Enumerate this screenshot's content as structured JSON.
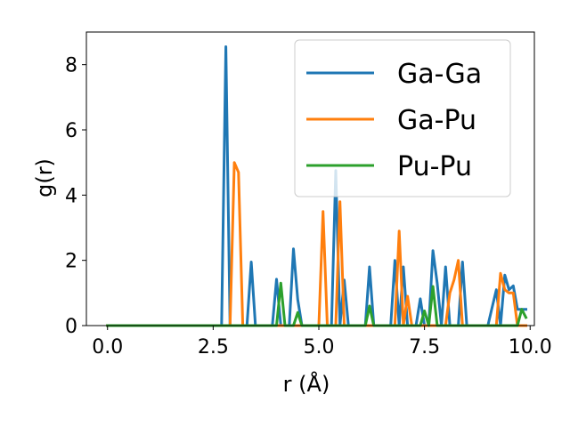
{
  "chart_data": {
    "type": "line",
    "xlabel": "r (Å)",
    "ylabel": "g(r)",
    "xlim": [
      -0.5,
      10.1
    ],
    "ylim": [
      0,
      9
    ],
    "xticks": [
      0.0,
      2.5,
      5.0,
      7.5,
      10.0
    ],
    "xtick_labels": [
      "0.0",
      "2.5",
      "5.0",
      "7.5",
      "10.0"
    ],
    "yticks": [
      0,
      2,
      4,
      6,
      8
    ],
    "ytick_labels": [
      "0",
      "2",
      "4",
      "6",
      "8"
    ],
    "grid": false,
    "legend_position": "top-right",
    "series": [
      {
        "name": "Ga-Ga",
        "color": "#1f77b4",
        "x": [
          0,
          2.7,
          2.8,
          2.9,
          3.3,
          3.4,
          3.5,
          3.9,
          4.0,
          4.1,
          4.3,
          4.4,
          4.5,
          4.6,
          5.3,
          5.4,
          5.5,
          5.6,
          5.7,
          5.8,
          6.1,
          6.2,
          6.3,
          6.7,
          6.8,
          6.9,
          7.0,
          7.1,
          7.3,
          7.4,
          7.5,
          7.6,
          7.7,
          7.8,
          7.9,
          8.0,
          8.1,
          8.3,
          8.4,
          8.5,
          9.0,
          9.1,
          9.2,
          9.3,
          9.4,
          9.5,
          9.6,
          9.7,
          9.8,
          9.9
        ],
        "y": [
          0,
          0,
          8.55,
          0,
          0,
          1.95,
          0,
          0,
          1.42,
          0,
          0,
          2.35,
          0.8,
          0,
          0,
          4.75,
          0,
          1.4,
          0,
          0,
          0,
          1.8,
          0,
          0,
          2.0,
          0,
          1.8,
          0,
          0,
          0.82,
          0,
          0,
          2.3,
          1.3,
          0,
          1.8,
          0,
          0,
          1.95,
          0,
          0,
          0.55,
          1.1,
          0,
          1.55,
          1.1,
          1.22,
          0.5,
          0.5,
          0.5
        ]
      },
      {
        "name": "Ga-Pu",
        "color": "#ff7f0e",
        "x": [
          0,
          2.9,
          3.0,
          3.1,
          3.2,
          5.0,
          5.1,
          5.2,
          5.3,
          5.4,
          5.5,
          5.6,
          6.8,
          6.9,
          7.0,
          7.1,
          7.2,
          7.9,
          8.0,
          8.1,
          8.2,
          8.3,
          8.4,
          9.0,
          9.1,
          9.2,
          9.3,
          9.4,
          9.5,
          9.6,
          9.7,
          9.8,
          9.9
        ],
        "y": [
          0,
          0,
          5.0,
          4.7,
          0,
          0,
          3.5,
          0,
          0,
          0,
          3.8,
          0,
          0,
          2.9,
          0,
          0.9,
          0,
          0,
          0,
          1.0,
          1.4,
          2.0,
          0,
          0,
          0,
          0,
          1.6,
          1.1,
          1.0,
          1.0,
          0,
          0,
          0
        ]
      },
      {
        "name": "Pu-Pu",
        "color": "#2ca02c",
        "x": [
          0,
          4.0,
          4.1,
          4.2,
          4.4,
          4.5,
          4.6,
          6.1,
          6.2,
          6.3,
          7.4,
          7.5,
          7.6,
          7.7,
          7.8,
          9.4,
          9.5,
          9.6,
          9.7,
          9.8,
          9.9
        ],
        "y": [
          0,
          0,
          1.3,
          0,
          0,
          0.4,
          0,
          0,
          0.6,
          0,
          0,
          0.45,
          0,
          1.2,
          0,
          0,
          0,
          0,
          0,
          0.5,
          0.25
        ]
      }
    ]
  }
}
